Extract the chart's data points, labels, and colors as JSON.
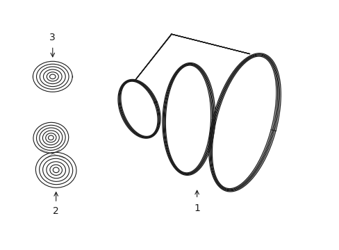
{
  "background_color": "#ffffff",
  "line_color": "#1a1a1a",
  "label1": "1",
  "label2": "2",
  "label3": "3",
  "figsize": [
    4.89,
    3.6
  ],
  "dpi": 100,
  "xlim": [
    0,
    10
  ],
  "ylim": [
    0,
    7.35
  ],
  "belt_offsets": [
    -0.09,
    -0.04,
    0.0,
    0.04,
    0.09
  ],
  "belt_lw": 0.9,
  "pulley_lw": 0.8
}
